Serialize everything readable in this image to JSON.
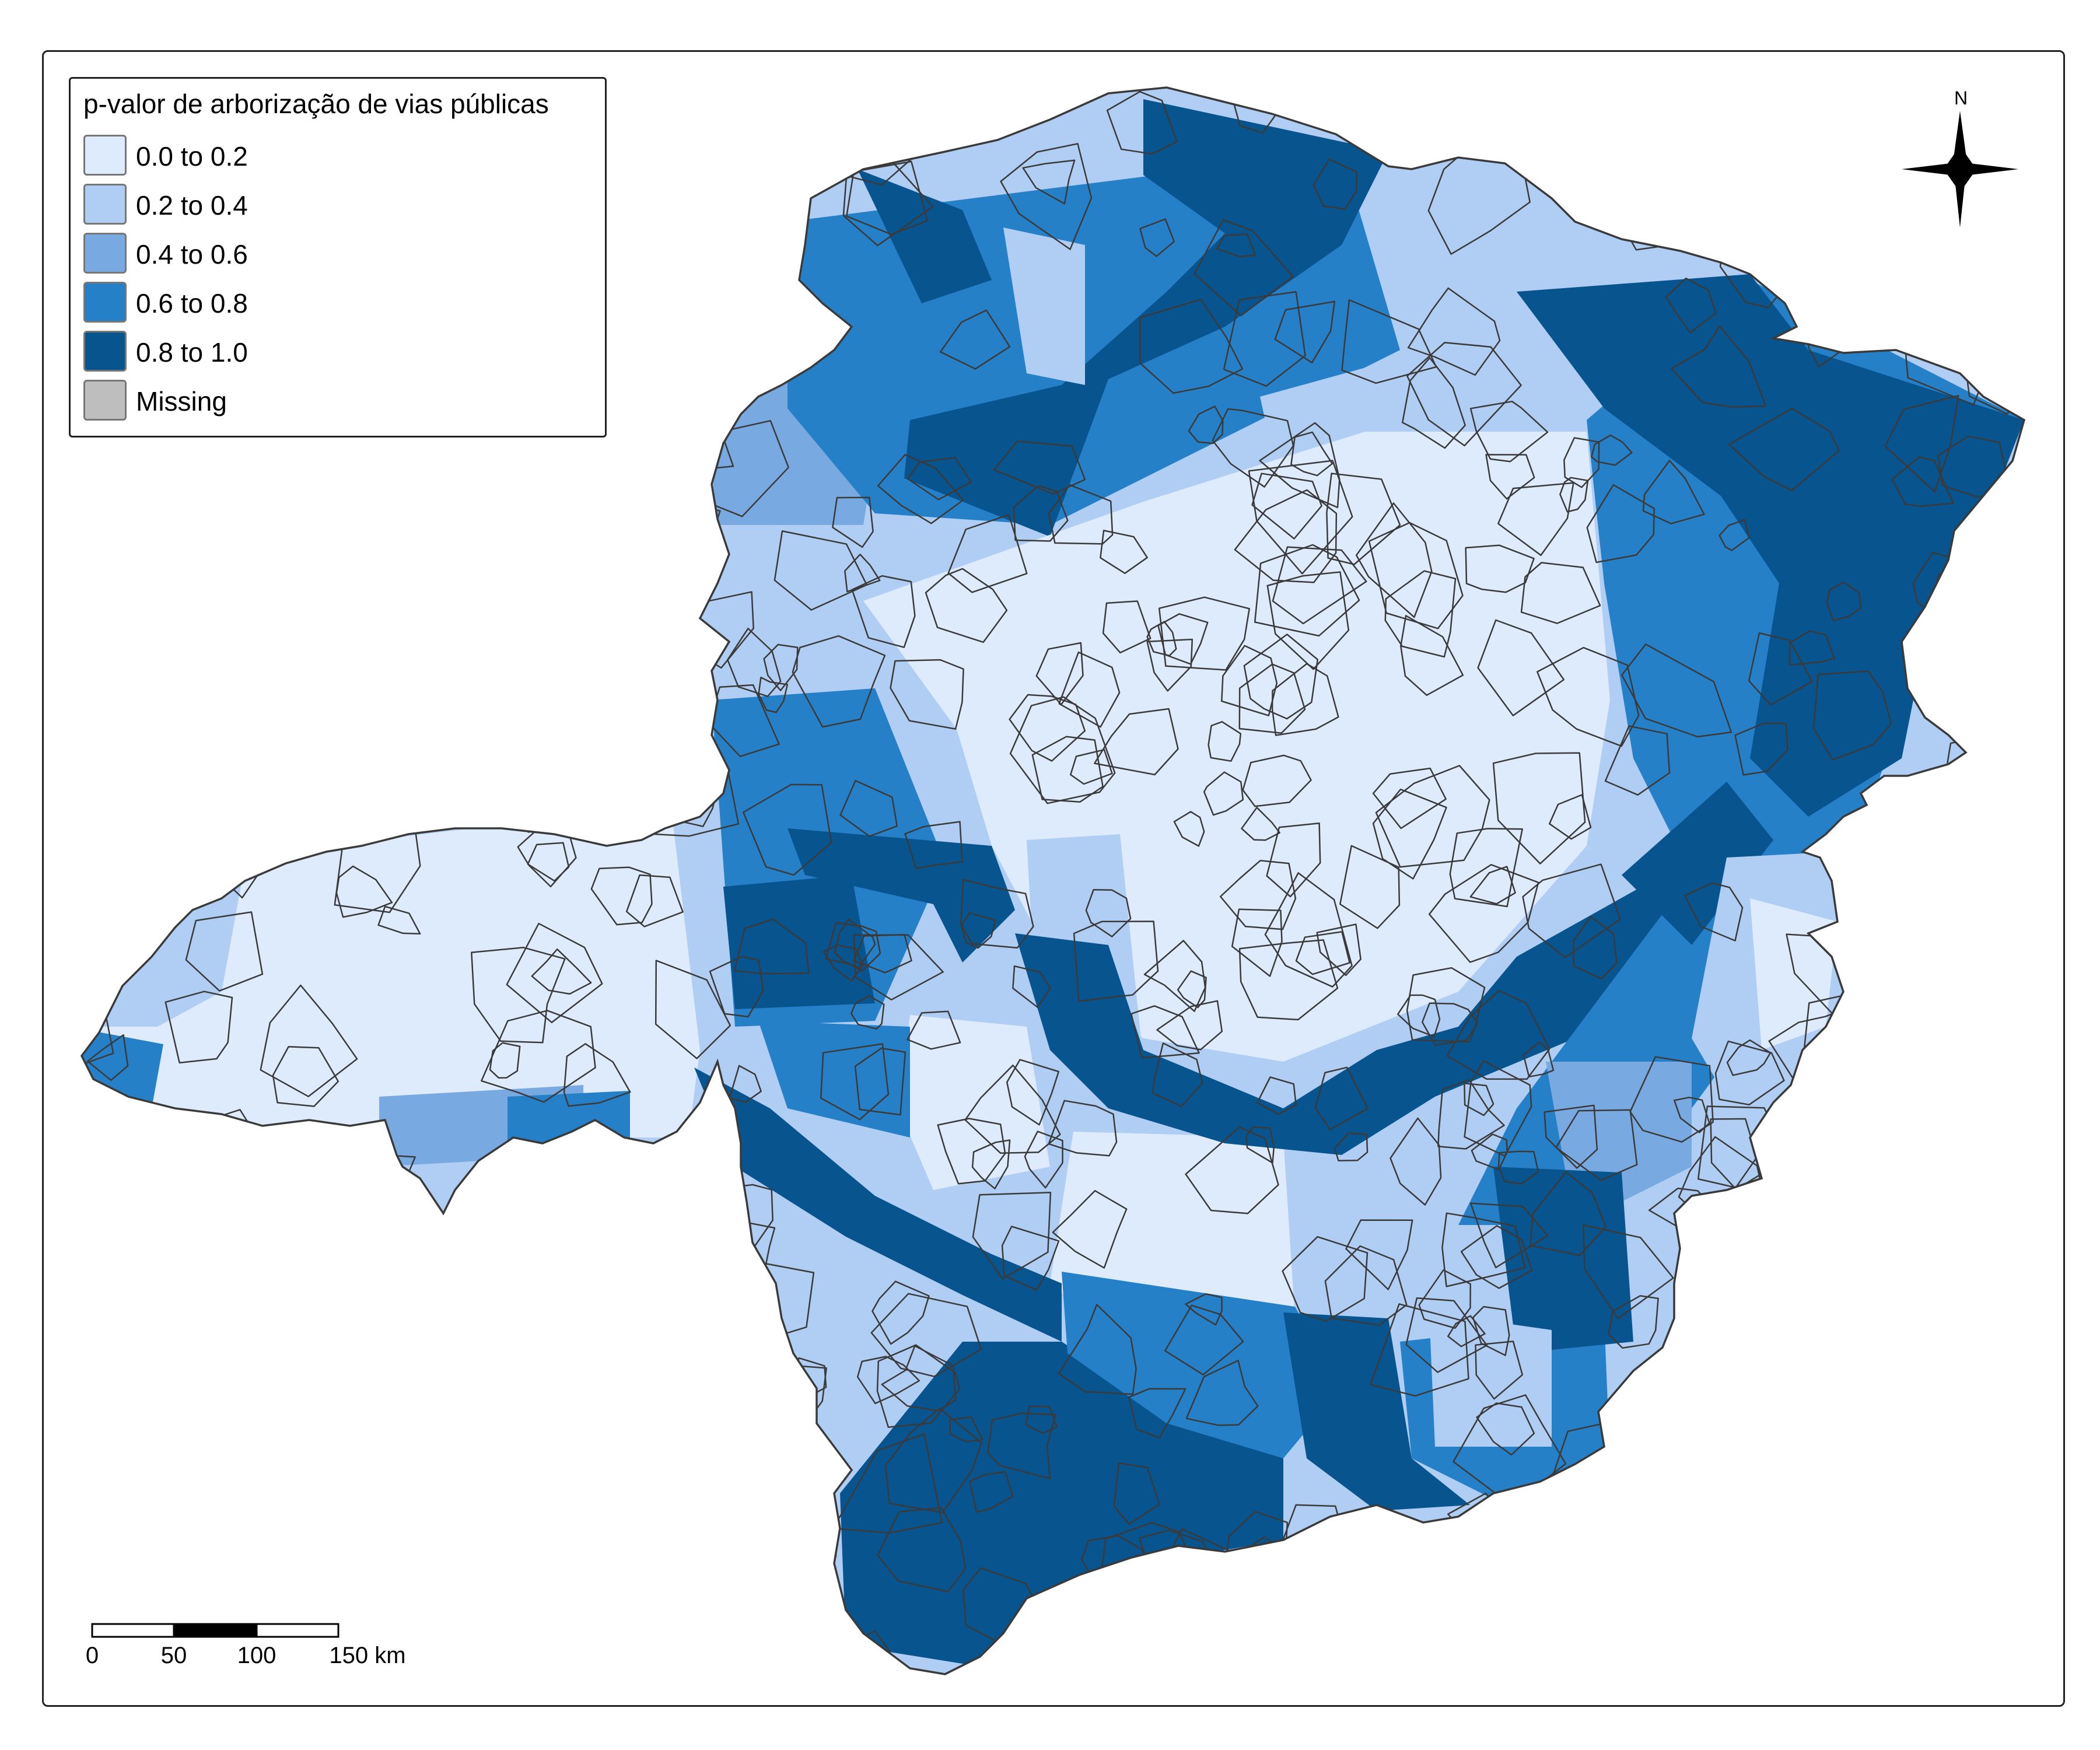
{
  "legend": {
    "title": "p-valor de arborização de vias públicas",
    "classes": [
      {
        "label": "0.0 to 0.2",
        "color": "#deebfd"
      },
      {
        "label": "0.2 to 0.4",
        "color": "#b0cdf4"
      },
      {
        "label": "0.4 to 0.6",
        "color": "#78a9e0"
      },
      {
        "label": "0.6 to 0.8",
        "color": "#2580c8"
      },
      {
        "label": "0.8 to 1.0",
        "color": "#07548f"
      },
      {
        "label": "Missing",
        "color": "#bebebe"
      }
    ]
  },
  "north_arrow": {
    "label": "N",
    "icon": "compass-rose-icon"
  },
  "scale_bar": {
    "ticks": [
      "0",
      "50",
      "100",
      "150 km"
    ]
  },
  "colors": {
    "border": "#3a3a3a",
    "frame": "#222222"
  }
}
